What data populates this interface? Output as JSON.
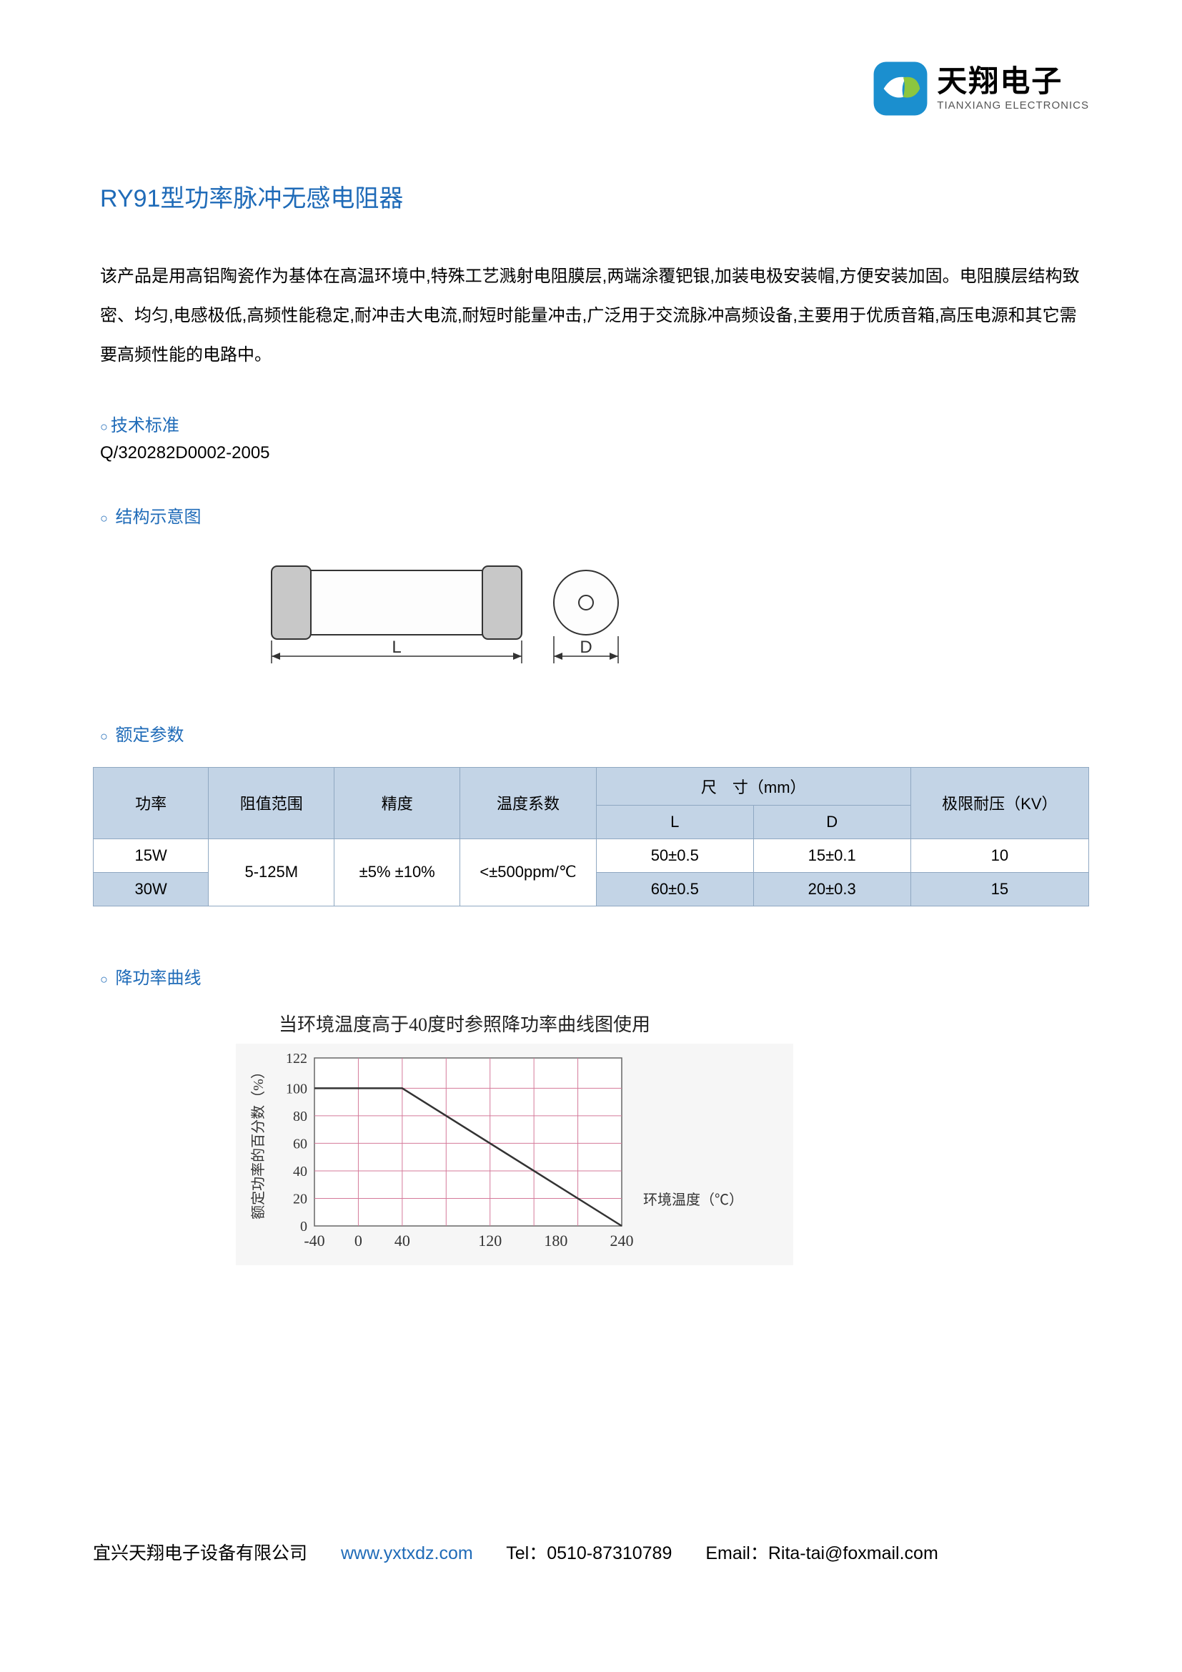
{
  "logo": {
    "cn": "天翔电子",
    "en": "TIANXIANG ELECTRONICS",
    "icon_bg": "#1b8fcf",
    "icon_leaf": "#8cc63f"
  },
  "title": "RY91型功率脉冲无感电阻器",
  "description": "该产品是用高铝陶瓷作为基体在高温环境中,特殊工艺溅射电阻膜层,两端涂覆钯银,加装电极安装帽,方便安装加固。电阻膜层结构致密、均匀,电感极低,高频性能稳定,耐冲击大电流,耐短时能量冲击,广泛用于交流脉冲高频设备,主要用于优质音箱,高压电源和其它需要高频性能的电路中。",
  "sections": {
    "tech_std": {
      "label": "技术标准",
      "value": "Q/320282D0002-2005"
    },
    "struct": {
      "label": "结构示意图"
    },
    "params": {
      "label": "额定参数"
    },
    "derate": {
      "label": "降功率曲线"
    }
  },
  "diagram": {
    "L_label": "L",
    "D_label": "D",
    "body_fill": "#fdfdfd",
    "cap_fill": "#c8c8c8",
    "stroke": "#333333"
  },
  "params_table": {
    "headers": {
      "power": "功率",
      "range": "阻值范围",
      "tol": "精度",
      "tc": "温度系数",
      "dim": "尺　寸（mm）",
      "L": "L",
      "D": "D",
      "volt": "极限耐压（KV）"
    },
    "rows": [
      {
        "power": "15W",
        "range": "5-125M",
        "tol": "±5% ±10%",
        "tc": "<±500ppm/℃",
        "L": "50±0.5",
        "D": "15±0.1",
        "volt": "10"
      },
      {
        "power": "30W",
        "range": "",
        "tol": "",
        "tc": "",
        "L": "60±0.5",
        "D": "20±0.3",
        "volt": "15"
      }
    ],
    "header_bg": "#c3d4e6",
    "border": "#8fa8c2"
  },
  "chart": {
    "title": "当环境温度高于40度时参照降功率曲线图使用",
    "ylabel": "额定功率的百分数（%）",
    "xlabel": "环境温度（℃）",
    "xticks": [
      "-40",
      "0",
      "40",
      "120",
      "180",
      "240"
    ],
    "yticks": [
      "0",
      "20",
      "40",
      "60",
      "80",
      "100",
      "122"
    ],
    "grid_color": "#d47a9a",
    "line_color": "#333333",
    "bg": "#f6f6f6",
    "line_points": [
      [
        -40,
        100
      ],
      [
        40,
        100
      ],
      [
        240,
        0
      ]
    ],
    "xlim": [
      -40,
      240
    ],
    "ylim": [
      0,
      122
    ]
  },
  "footer": {
    "company": "宜兴天翔电子设备有限公司",
    "url": "www.yxtxdz.com",
    "tel": "Tel：0510-87310789",
    "email": "Email：Rita-tai@foxmail.com"
  }
}
